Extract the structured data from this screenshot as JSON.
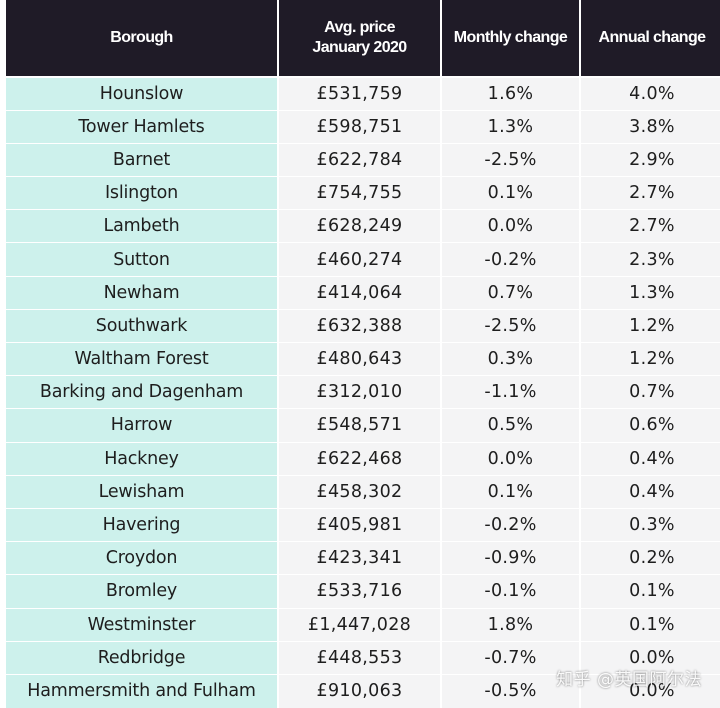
{
  "table": {
    "headers": {
      "borough": "Borough",
      "price_line1": "Avg. price",
      "price_line2": "January 2020",
      "monthly": "Monthly change",
      "annual": "Annual change"
    },
    "rows": [
      {
        "borough": "Hounslow",
        "price": "£531,759",
        "monthly": "1.6%",
        "annual": "4.0%"
      },
      {
        "borough": "Tower Hamlets",
        "price": "£598,751",
        "monthly": "1.3%",
        "annual": "3.8%"
      },
      {
        "borough": "Barnet",
        "price": "£622,784",
        "monthly": "-2.5%",
        "annual": "2.9%"
      },
      {
        "borough": "Islington",
        "price": "£754,755",
        "monthly": "0.1%",
        "annual": "2.7%"
      },
      {
        "borough": "Lambeth",
        "price": "£628,249",
        "monthly": "0.0%",
        "annual": "2.7%"
      },
      {
        "borough": "Sutton",
        "price": "£460,274",
        "monthly": "-0.2%",
        "annual": "2.3%"
      },
      {
        "borough": "Newham",
        "price": "£414,064",
        "monthly": "0.7%",
        "annual": "1.3%"
      },
      {
        "borough": "Southwark",
        "price": "£632,388",
        "monthly": "-2.5%",
        "annual": "1.2%"
      },
      {
        "borough": "Waltham Forest",
        "price": "£480,643",
        "monthly": "0.3%",
        "annual": "1.2%"
      },
      {
        "borough": "Barking and Dagenham",
        "price": "£312,010",
        "monthly": "-1.1%",
        "annual": "0.7%"
      },
      {
        "borough": "Harrow",
        "price": "£548,571",
        "monthly": "0.5%",
        "annual": "0.6%"
      },
      {
        "borough": "Hackney",
        "price": "£622,468",
        "monthly": "0.0%",
        "annual": "0.4%"
      },
      {
        "borough": "Lewisham",
        "price": "£458,302",
        "monthly": "0.1%",
        "annual": "0.4%"
      },
      {
        "borough": "Havering",
        "price": "£405,981",
        "monthly": "-0.2%",
        "annual": "0.3%"
      },
      {
        "borough": "Croydon",
        "price": "£423,341",
        "monthly": "-0.9%",
        "annual": "0.2%"
      },
      {
        "borough": "Bromley",
        "price": "£533,716",
        "monthly": "-0.1%",
        "annual": "0.1%"
      },
      {
        "borough": "Westminster",
        "price": "£1,447,028",
        "monthly": "1.8%",
        "annual": "0.1%"
      },
      {
        "borough": "Redbridge",
        "price": "£448,553",
        "monthly": "-0.7%",
        "annual": "0.0%"
      },
      {
        "borough": "Hammersmith and Fulham",
        "price": "£910,063",
        "monthly": "-0.5%",
        "annual": "0.0%"
      }
    ]
  },
  "watermark": "知乎 @英国阿尔法",
  "colors": {
    "header_background": "#1f1b27",
    "header_text": "#ffffff",
    "borough_column_background": "#cdf1ec",
    "data_cell_background": "#f4f4f5"
  }
}
